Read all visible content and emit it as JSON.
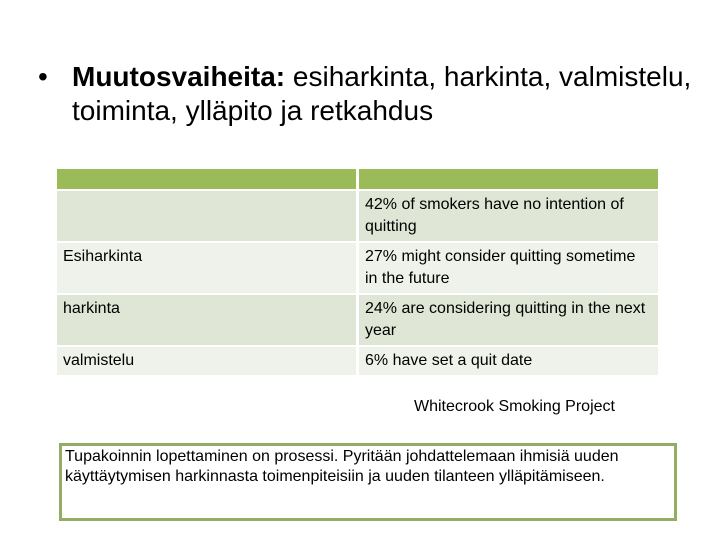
{
  "title": {
    "bullet": "•",
    "bold": "Muutosvaiheita:",
    "rest": " esiharkinta, harkinta, valmistelu, toiminta, ylläpito ja retkahdus"
  },
  "table": {
    "header": [
      "",
      ""
    ],
    "rows": [
      {
        "stage": "",
        "text": "42% of smokers have no intention of quitting"
      },
      {
        "stage": "Esiharkinta",
        "text": "27% might consider quitting sometime in the future"
      },
      {
        "stage": "harkinta",
        "text": "24% are considering quitting in the next year"
      },
      {
        "stage": "valmistelu",
        "text": "6% have set a quit date"
      }
    ]
  },
  "source": "Whitecrook Smoking Project",
  "note": "Tupakoinnin lopettaminen on prosessi. Pyritään johdattelemaan ihmisiä uuden käyttäytymisen harkinnasta toimenpiteisiin ja uuden tilanteen ylläpitämiseen.",
  "colors": {
    "header": "#9bbb59",
    "row_dark": "#dfe6d5",
    "row_light": "#eff2ea",
    "border": "#93ad62"
  }
}
